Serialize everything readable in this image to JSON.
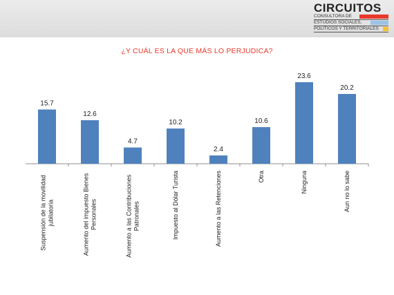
{
  "logo": {
    "title": "CIRCUITOS",
    "lines": [
      "CONSULTORA DE",
      "ESTUDIOS SOCIALES,",
      "POLÍTICOS Y TERRITORIALES"
    ],
    "colors": [
      "#e8382c",
      "#9cc3e6",
      "#f2c230"
    ]
  },
  "chart_data": {
    "type": "bar",
    "title": "¿Y CUÁL ES LA QUE MÁS LO PERJUDICA?",
    "categories": [
      "Suspensión de la movilidad jubilatoria",
      "Aumento del impuesto Bienes Personales",
      "Aumento a las Contribuciones Patronales",
      "Impuesto al Dólar Turista",
      "Aumento a las Retenciones",
      "Otra",
      "Ninguna",
      "Aun no lo sabe"
    ],
    "category_label_lines": [
      [
        "Suspensión de la movilidad",
        "jubilatoria"
      ],
      [
        "Aumento del impuesto Bienes",
        "Personales"
      ],
      [
        "Aumento a las Contribuciones",
        "Patronales"
      ],
      [
        "Impuesto al Dólar Turista"
      ],
      [
        "Aumento a las Retenciones"
      ],
      [
        "Otra"
      ],
      [
        "Ninguna"
      ],
      [
        "Aun no lo sabe"
      ]
    ],
    "values": [
      15.7,
      12.6,
      4.7,
      10.2,
      2.4,
      10.6,
      23.6,
      20.2
    ],
    "value_labels": [
      "15.7",
      "12.6",
      "4.7",
      "10.2",
      "2.4",
      "10.6",
      "23.6",
      "20.2"
    ],
    "ylim": [
      0,
      25
    ],
    "grid": false,
    "bar_color": "#4f81bd",
    "title_color": "#e8382c"
  }
}
